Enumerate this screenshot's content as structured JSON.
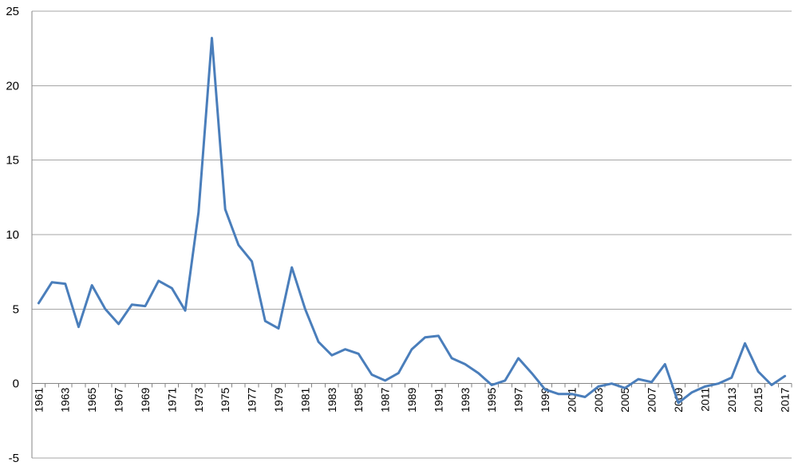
{
  "chart_data": {
    "type": "line",
    "title": "",
    "xlabel": "",
    "ylabel": "",
    "ylim": [
      -5,
      25
    ],
    "yticks": [
      "-5",
      "0",
      "5",
      "10",
      "15",
      "20",
      "25"
    ],
    "grid": true,
    "legend": "none",
    "x_tick_labels": [
      "1961",
      "1963",
      "1965",
      "1967",
      "1969",
      "1971",
      "1973",
      "1975",
      "1977",
      "1979",
      "1981",
      "1983",
      "1985",
      "1987",
      "1989",
      "1991",
      "1993",
      "1995",
      "1997",
      "1999",
      "2001",
      "2003",
      "2005",
      "2007",
      "2009",
      "2011",
      "2013",
      "2015",
      "2017"
    ],
    "x": [
      1961,
      1962,
      1963,
      1964,
      1965,
      1966,
      1967,
      1968,
      1969,
      1970,
      1971,
      1972,
      1973,
      1974,
      1975,
      1976,
      1977,
      1978,
      1979,
      1980,
      1981,
      1982,
      1983,
      1984,
      1985,
      1986,
      1987,
      1988,
      1989,
      1990,
      1991,
      1992,
      1993,
      1994,
      1995,
      1996,
      1997,
      1998,
      1999,
      2000,
      2001,
      2002,
      2003,
      2004,
      2005,
      2006,
      2007,
      2008,
      2009,
      2010,
      2011,
      2012,
      2013,
      2014,
      2015,
      2016,
      2017
    ],
    "series": [
      {
        "values": [
          5.4,
          6.8,
          6.7,
          3.8,
          6.6,
          5.0,
          4.0,
          5.3,
          5.2,
          6.9,
          6.4,
          4.9,
          11.5,
          23.2,
          11.7,
          9.3,
          8.2,
          4.2,
          3.7,
          7.8,
          5.0,
          2.8,
          1.9,
          2.3,
          2.0,
          0.6,
          0.2,
          0.7,
          2.3,
          3.1,
          3.2,
          1.7,
          1.3,
          0.7,
          -0.1,
          0.2,
          1.7,
          0.7,
          -0.4,
          -0.7,
          -0.7,
          -0.9,
          -0.2,
          0.0,
          -0.3,
          0.3,
          0.1,
          1.3,
          -1.3,
          -0.6,
          -0.2,
          0.0,
          0.4,
          2.7,
          0.8,
          -0.1,
          0.5
        ],
        "color": "#4a7ebb"
      }
    ]
  }
}
